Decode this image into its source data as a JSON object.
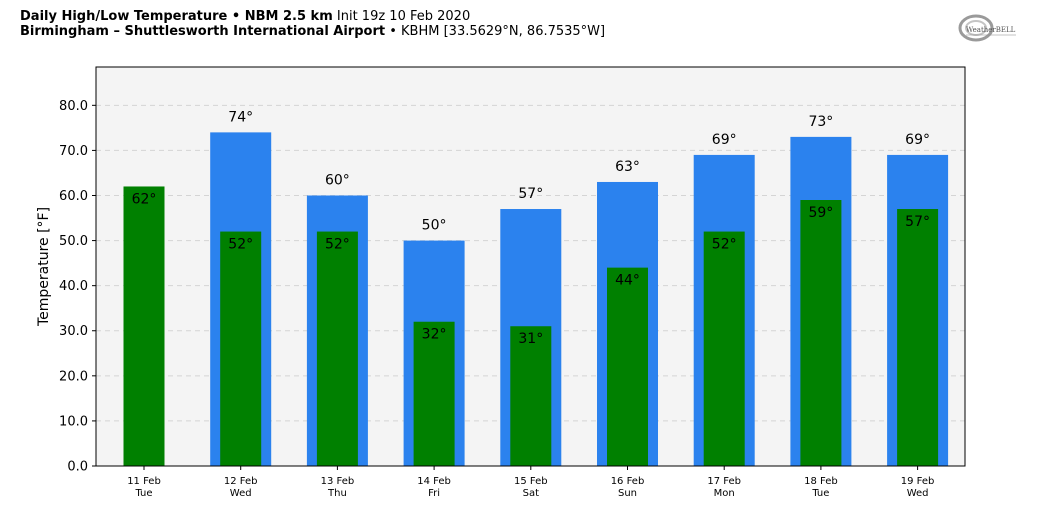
{
  "header": {
    "line1_bold": "Daily High/Low Temperature • NBM 2.5 km",
    "line1_rest": "Init 19z 10 Feb 2020",
    "line2_bold": "Birmingham – Shuttlesworth International Airport",
    "line2_rest": "• KBHM [33.5629°N, 86.7535°W]"
  },
  "logo": {
    "text": "WeatherBELL"
  },
  "colors": {
    "high": "#2b82ee",
    "low": "#008000",
    "plot_bg": "#f4f4f4",
    "grid": "#d4d4d4"
  },
  "chart_data": {
    "type": "bar",
    "ylabel": "Temperature [°F]",
    "ylim": [
      0,
      88.5
    ],
    "yticks": [
      "0.0",
      "10.0",
      "20.0",
      "30.0",
      "40.0",
      "50.0",
      "60.0",
      "70.0",
      "80.0"
    ],
    "grid": true,
    "categories": [
      {
        "date": "11 Feb",
        "day": "Tue"
      },
      {
        "date": "12 Feb",
        "day": "Wed"
      },
      {
        "date": "13 Feb",
        "day": "Thu"
      },
      {
        "date": "14 Feb",
        "day": "Fri"
      },
      {
        "date": "15 Feb",
        "day": "Sat"
      },
      {
        "date": "16 Feb",
        "day": "Sun"
      },
      {
        "date": "17 Feb",
        "day": "Mon"
      },
      {
        "date": "18 Feb",
        "day": "Tue"
      },
      {
        "date": "19 Feb",
        "day": "Wed"
      }
    ],
    "series": [
      {
        "values": [
          null,
          74,
          60,
          50,
          57,
          63,
          69,
          73,
          69
        ],
        "labels": [
          "",
          "74°",
          "60°",
          "50°",
          "57°",
          "63°",
          "69°",
          "73°",
          "69°"
        ]
      },
      {
        "values": [
          62,
          52,
          52,
          32,
          31,
          44,
          52,
          59,
          57
        ],
        "labels": [
          "62°",
          "52°",
          "52°",
          "32°",
          "31°",
          "44°",
          "52°",
          "59°",
          "57°"
        ]
      }
    ]
  }
}
